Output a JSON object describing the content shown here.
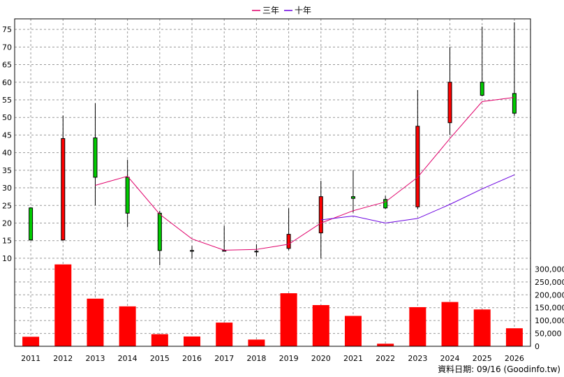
{
  "chart_data": {
    "type": "candlestick",
    "legend": [
      {
        "name": "三年",
        "color": "#e0006a"
      },
      {
        "name": "十年",
        "color": "#6a00e0"
      }
    ],
    "legend_position": "top-center",
    "grid": true,
    "categories": [
      "2011",
      "2012",
      "2013",
      "2014",
      "2015",
      "2016",
      "2017",
      "2018",
      "2019",
      "2020",
      "2021",
      "2022",
      "2023",
      "2024",
      "2025",
      "2026"
    ],
    "price_axis": {
      "ylim": [
        8,
        78
      ],
      "ticks": [
        "10",
        "15",
        "20",
        "25",
        "30",
        "35",
        "40",
        "45",
        "50",
        "55",
        "60",
        "65",
        "70",
        "75"
      ]
    },
    "volume_axis": {
      "ylim": [
        0,
        320000
      ],
      "ticks": [
        "0",
        "50,000",
        "100,000",
        "150,000",
        "200,000",
        "250,000",
        "300,000"
      ]
    },
    "candles": [
      {
        "open": 15.2,
        "high": 24.5,
        "low": 15.0,
        "close": 24.3
      },
      {
        "open": 44.0,
        "high": 50.5,
        "low": 15.0,
        "close": 15.2
      },
      {
        "open": 33.0,
        "high": 54.0,
        "low": 25.0,
        "close": 44.2
      },
      {
        "open": 22.8,
        "high": 38.0,
        "low": 18.8,
        "close": 33.0
      },
      {
        "open": 12.2,
        "high": 23.5,
        "low": 8.0,
        "close": 22.8
      },
      {
        "open": 12.0,
        "high": 13.5,
        "low": 10.0,
        "close": 12.2
      },
      {
        "open": 12.0,
        "high": 19.2,
        "low": 12.0,
        "close": 12.2
      },
      {
        "open": 12.0,
        "high": 14.0,
        "low": 10.5,
        "close": 12.0
      },
      {
        "open": 16.8,
        "high": 24.2,
        "low": 12.3,
        "close": 12.8
      },
      {
        "open": 27.5,
        "high": 32.0,
        "low": 10.0,
        "close": 17.2
      },
      {
        "open": 27.0,
        "high": 35.0,
        "low": 23.0,
        "close": 27.5
      },
      {
        "open": 24.3,
        "high": 27.7,
        "low": 24.0,
        "close": 26.7
      },
      {
        "open": 47.5,
        "high": 57.8,
        "low": 24.0,
        "close": 24.6
      },
      {
        "open": 60.0,
        "high": 70.0,
        "low": 45.0,
        "close": 48.5
      },
      {
        "open": 56.3,
        "high": 75.8,
        "low": 56.0,
        "close": 60.0
      },
      {
        "open": 51.2,
        "high": 77.0,
        "low": 50.5,
        "close": 56.8
      }
    ],
    "series": [
      {
        "name": "三年",
        "color": "#e0006a",
        "values": [
          null,
          null,
          30.7,
          33.3,
          22.5,
          15.5,
          12.3,
          12.5,
          14.0,
          20.0,
          23.5,
          26.0,
          33.0,
          44.0,
          54.5,
          55.7
        ]
      },
      {
        "name": "十年",
        "color": "#6a00e0",
        "values": [
          null,
          null,
          null,
          null,
          null,
          null,
          null,
          null,
          null,
          20.9,
          22.0,
          20.0,
          21.3,
          25.3,
          29.7,
          33.7
        ]
      }
    ],
    "volume": [
      37000,
      318000,
      185000,
      155000,
      47000,
      38000,
      92000,
      26000,
      206000,
      160000,
      118000,
      10000,
      152000,
      172000,
      143000,
      70000
    ],
    "up_color": "#00cc00",
    "down_color": "#ff0000",
    "volume_color": "#ff0000"
  },
  "footer_text": "資料日期: 09/16 (Goodinfo.tw)"
}
